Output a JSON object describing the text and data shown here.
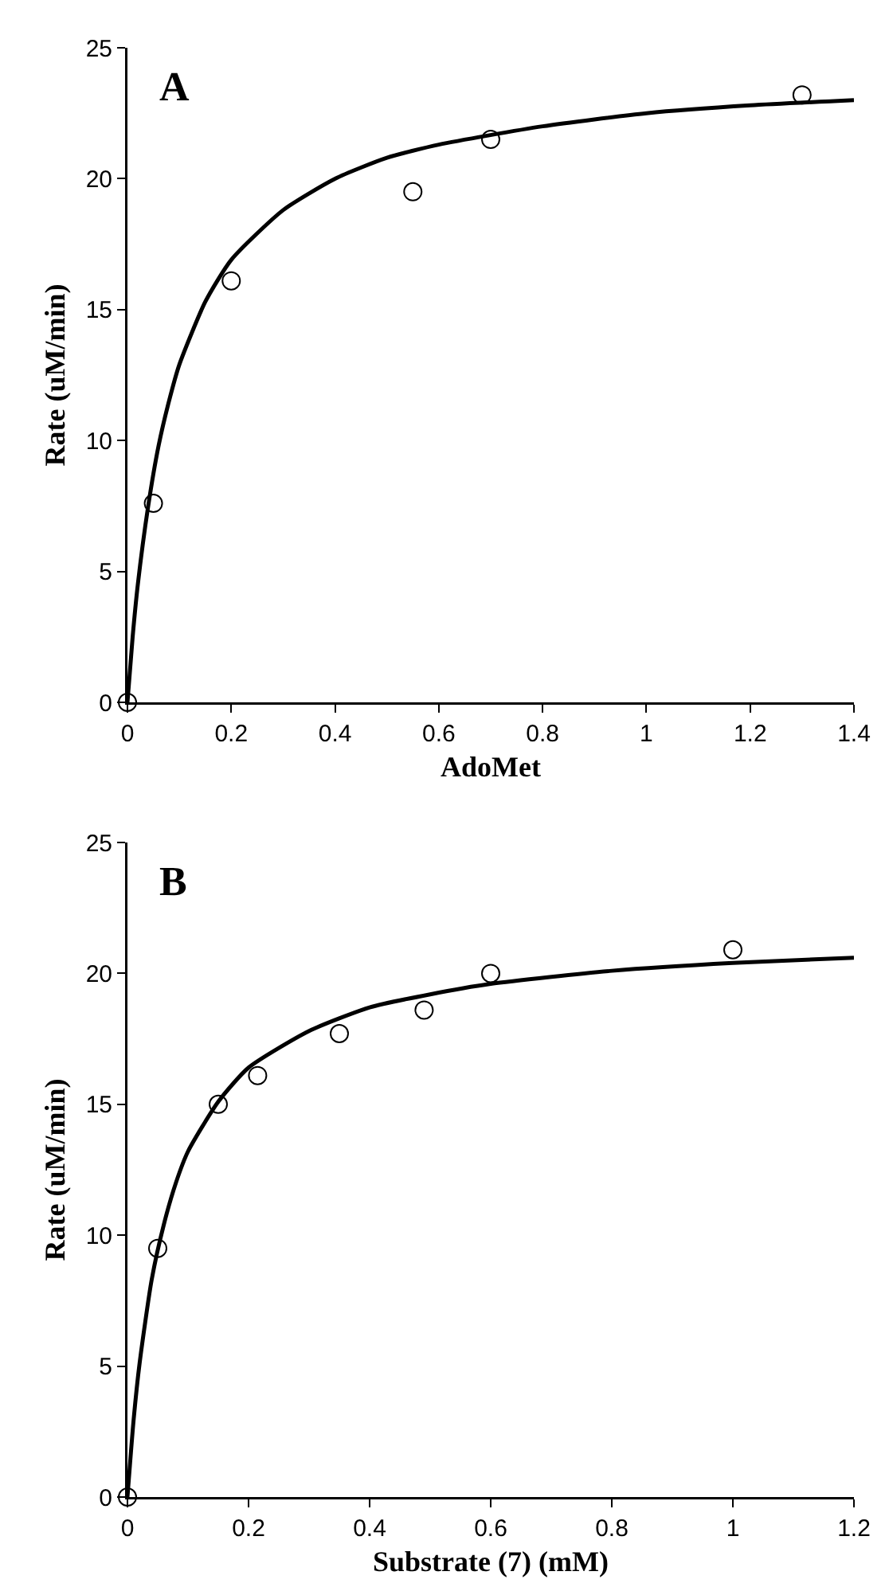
{
  "chart_data": [
    {
      "type": "scatter",
      "xlabel": "AdoMet",
      "ylabel": "Rate (uM/min)",
      "annotations": [
        "A"
      ],
      "xlim": [
        0,
        1.4
      ],
      "xticks": [
        0,
        0.2,
        0.4,
        0.6,
        0.8,
        1,
        1.2,
        1.4
      ],
      "ylim": [
        0,
        25
      ],
      "yticks": [
        0,
        5,
        10,
        15,
        20,
        25
      ],
      "series": [
        {
          "marker": "circle",
          "color": "#000000",
          "x": [
            0,
            0.05,
            0.2,
            0.55,
            0.7,
            1.3
          ],
          "values": [
            0,
            7.6,
            16.1,
            19.5,
            21.5,
            23.2
          ]
        },
        {
          "type": "line",
          "marker": "none",
          "line_style": "solid",
          "color": "#000000",
          "x": [
            0,
            0.01,
            0.02,
            0.04,
            0.06,
            0.08,
            0.1,
            0.15,
            0.2,
            0.3,
            0.4,
            0.5,
            0.6,
            0.8,
            1.0,
            1.2,
            1.4
          ],
          "values": [
            0,
            2.5,
            4.5,
            7.5,
            9.8,
            11.5,
            12.9,
            15.3,
            16.9,
            18.8,
            20.0,
            20.8,
            21.3,
            22.0,
            22.5,
            22.8,
            23.0
          ]
        }
      ]
    },
    {
      "type": "scatter",
      "xlabel": "Substrate (7) (mM)",
      "ylabel": "Rate (uM/min)",
      "annotations": [
        "B"
      ],
      "xlim": [
        0,
        1.2
      ],
      "xticks": [
        0,
        0.2,
        0.4,
        0.6,
        0.8,
        1,
        1.2
      ],
      "ylim": [
        0,
        25
      ],
      "yticks": [
        0,
        5,
        10,
        15,
        20,
        25
      ],
      "series": [
        {
          "marker": "circle",
          "color": "#000000",
          "x": [
            0,
            0.05,
            0.15,
            0.215,
            0.35,
            0.49,
            0.6,
            1.0
          ],
          "values": [
            0,
            9.5,
            15,
            16.1,
            17.7,
            18.6,
            20,
            20.9
          ]
        },
        {
          "type": "line",
          "marker": "none",
          "line_style": "solid",
          "color": "#000000",
          "x": [
            0,
            0.01,
            0.02,
            0.04,
            0.06,
            0.08,
            0.1,
            0.15,
            0.2,
            0.3,
            0.4,
            0.5,
            0.6,
            0.8,
            1.0,
            1.2
          ],
          "values": [
            0,
            2.9,
            5.1,
            8.3,
            10.4,
            12.0,
            13.2,
            15.1,
            16.4,
            17.8,
            18.7,
            19.2,
            19.6,
            20.1,
            20.4,
            20.6
          ]
        }
      ]
    }
  ]
}
